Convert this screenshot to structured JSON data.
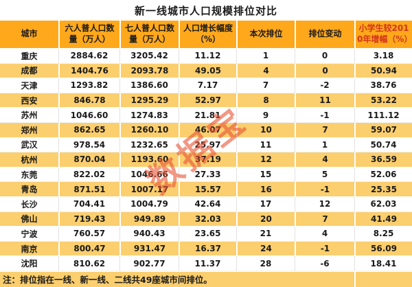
{
  "title": "新一线城市人口规模排位对比",
  "watermark": "数据宝",
  "footnote": "注：排位指在一线、新一线、二线共49座城市间排位。",
  "colors": {
    "header_bg": "#FFA81C",
    "stripe_bg": "#FBCE6E",
    "highlight_text": "#D2331B",
    "watermark_color": "rgba(232,83,52,0.6)"
  },
  "chart_data": {
    "type": "table",
    "title": "新一线城市人口规模排位对比",
    "columns": [
      "城市",
      "六人普人口数量（万人）",
      "七人普人口数量（万人）",
      "人口增长幅度（%）",
      "本次排位",
      "排位变动",
      "小学生较2010年增幅（%）"
    ],
    "rows": [
      [
        "重庆",
        "2884.62",
        "3205.42",
        "11.12",
        "1",
        "0",
        "3.18"
      ],
      [
        "成都",
        "1404.76",
        "2093.78",
        "49.05",
        "4",
        "0",
        "50.94"
      ],
      [
        "天津",
        "1293.82",
        "1386.60",
        "7.17",
        "7",
        "-2",
        "38.76"
      ],
      [
        "西安",
        "846.78",
        "1295.29",
        "52.97",
        "8",
        "11",
        "53.22"
      ],
      [
        "苏州",
        "1046.60",
        "1274.83",
        "21.81",
        "9",
        "-1",
        "111.12"
      ],
      [
        "郑州",
        "862.65",
        "1260.10",
        "46.07",
        "10",
        "7",
        "59.07"
      ],
      [
        "武汉",
        "978.54",
        "1232.65",
        "25.97",
        "11",
        "1",
        "50.74"
      ],
      [
        "杭州",
        "870.04",
        "1193.60",
        "37.19",
        "12",
        "4",
        "36.59"
      ],
      [
        "东莞",
        "822.02",
        "1046.66",
        "27.33",
        "15",
        "5",
        "52.06"
      ],
      [
        "青岛",
        "871.51",
        "1007.17",
        "15.57",
        "16",
        "-1",
        "25.35"
      ],
      [
        "长沙",
        "704.41",
        "1004.79",
        "42.64",
        "17",
        "12",
        "62.03"
      ],
      [
        "佛山",
        "719.43",
        "949.89",
        "32.03",
        "20",
        "7",
        "41.49"
      ],
      [
        "宁波",
        "760.57",
        "940.43",
        "23.65",
        "21",
        "4",
        "8.25"
      ],
      [
        "南京",
        "800.47",
        "931.47",
        "16.37",
        "24",
        "-1",
        "56.09"
      ],
      [
        "沈阳",
        "810.62",
        "902.77",
        "11.37",
        "28",
        "-6",
        "18.41"
      ]
    ]
  }
}
